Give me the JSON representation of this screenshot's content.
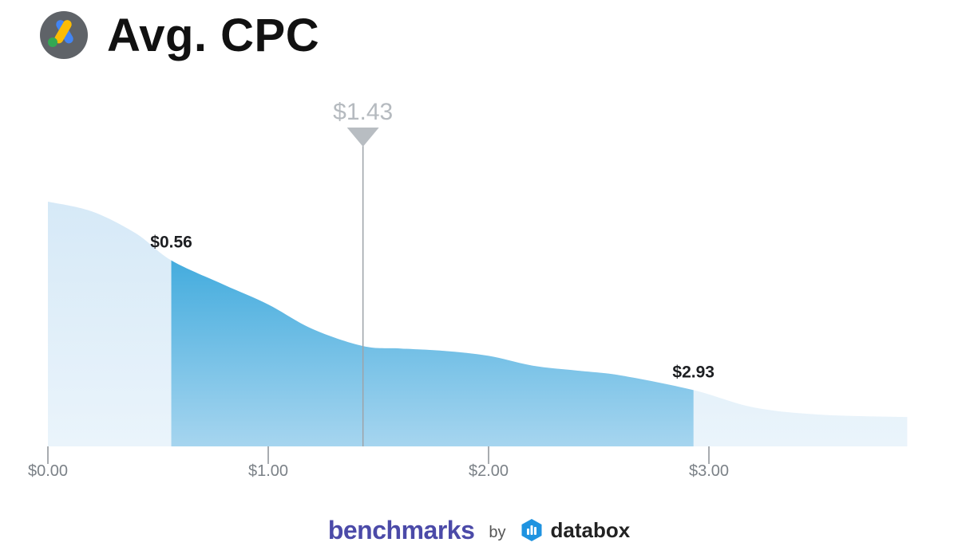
{
  "header": {
    "title": "Avg. CPC",
    "logo": "google-ads-logo"
  },
  "chart_data": {
    "type": "area",
    "title": "Avg. CPC",
    "xlim": [
      0,
      3.9
    ],
    "x_ticks": [
      {
        "value": 0,
        "label": "$0.00"
      },
      {
        "value": 1,
        "label": "$1.00"
      },
      {
        "value": 2,
        "label": "$2.00"
      },
      {
        "value": 3,
        "label": "$3.00"
      }
    ],
    "density_curve": {
      "x": [
        0,
        0.2,
        0.4,
        0.56,
        0.8,
        1.0,
        1.2,
        1.43,
        1.6,
        1.8,
        2.0,
        2.2,
        2.4,
        2.6,
        2.93,
        3.2,
        3.5,
        3.9
      ],
      "y": [
        1.0,
        0.96,
        0.87,
        0.76,
        0.66,
        0.58,
        0.48,
        0.41,
        0.4,
        0.39,
        0.37,
        0.33,
        0.31,
        0.29,
        0.23,
        0.16,
        0.13,
        0.12
      ]
    },
    "highlight_range": [
      0.56,
      2.93
    ],
    "median": {
      "value": 1.43,
      "label": "$1.43"
    },
    "range_labels": [
      {
        "value": 0.56,
        "label": "$0.56"
      },
      {
        "value": 2.93,
        "label": "$2.93"
      }
    ],
    "colors": {
      "light_fill": "#dcecf8",
      "highlight_top": "#259fd8",
      "highlight_bottom": "#a6d5ef",
      "median_line": "#9ea3a8",
      "median_text": "#b5babf"
    }
  },
  "footer": {
    "brand": "benchmarks",
    "by": "by",
    "partner": "databox"
  }
}
